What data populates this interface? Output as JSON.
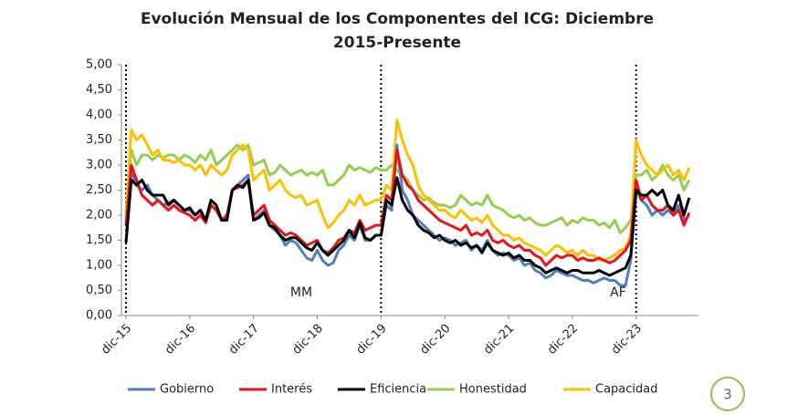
{
  "chart_data": {
    "type": "line",
    "title": "Evolución Mensual de los Componentes del ICG: Diciembre 2015-Presente",
    "categories": [
      "dic-15",
      null,
      null,
      null,
      null,
      null,
      null,
      null,
      null,
      null,
      null,
      null,
      "dic-16",
      null,
      null,
      null,
      null,
      null,
      null,
      null,
      null,
      null,
      null,
      null,
      "dic-17",
      null,
      null,
      null,
      null,
      null,
      null,
      null,
      null,
      null,
      null,
      null,
      "dic-18",
      null,
      null,
      null,
      null,
      null,
      null,
      null,
      null,
      null,
      null,
      null,
      "dic-19",
      null,
      null,
      null,
      null,
      null,
      null,
      null,
      null,
      null,
      null,
      null,
      "dic-20",
      null,
      null,
      null,
      null,
      null,
      null,
      null,
      null,
      null,
      null,
      null,
      "dic-21",
      null,
      null,
      null,
      null,
      null,
      null,
      null,
      null,
      null,
      null,
      null,
      "dic-22",
      null,
      null,
      null,
      null,
      null,
      null,
      null,
      null,
      null,
      null,
      null,
      "dic-23",
      null,
      null,
      null,
      null,
      null,
      null,
      null,
      null,
      null,
      null
    ],
    "series": [
      {
        "name": "Gobierno",
        "color": "#4f7fbf",
        "values": [
          1.45,
          2.9,
          2.6,
          2.5,
          2.6,
          2.4,
          2.3,
          2.2,
          2.25,
          2.3,
          2.2,
          2.1,
          2.1,
          2.0,
          2.1,
          1.9,
          2.2,
          2.1,
          1.9,
          1.95,
          2.5,
          2.6,
          2.7,
          2.8,
          1.9,
          2.0,
          2.1,
          1.8,
          1.7,
          1.6,
          1.4,
          1.5,
          1.45,
          1.3,
          1.15,
          1.1,
          1.3,
          1.1,
          1.0,
          1.05,
          1.3,
          1.4,
          1.6,
          1.5,
          1.8,
          1.5,
          1.5,
          1.6,
          1.6,
          2.2,
          2.1,
          3.4,
          2.5,
          2.3,
          2.0,
          1.9,
          1.8,
          1.7,
          1.6,
          1.5,
          1.55,
          1.5,
          1.4,
          1.45,
          1.5,
          1.3,
          1.4,
          1.3,
          1.5,
          1.3,
          1.2,
          1.25,
          1.2,
          1.1,
          1.15,
          1.0,
          1.05,
          0.9,
          0.85,
          0.75,
          0.8,
          0.9,
          0.85,
          0.8,
          0.8,
          0.75,
          0.7,
          0.7,
          0.65,
          0.7,
          0.75,
          0.7,
          0.7,
          0.6,
          0.6,
          1.1,
          2.5,
          2.3,
          2.2,
          2.0,
          2.1,
          2.0,
          2.1,
          2.0,
          2.2,
          1.9,
          2.0
        ]
      },
      {
        "name": "Interés",
        "color": "#e8141a",
        "values": [
          1.8,
          3.0,
          2.7,
          2.4,
          2.3,
          2.2,
          2.3,
          2.2,
          2.1,
          2.2,
          2.1,
          2.05,
          2.0,
          1.9,
          2.0,
          1.85,
          2.2,
          2.1,
          1.9,
          2.0,
          2.5,
          2.55,
          2.6,
          2.7,
          2.0,
          2.1,
          2.2,
          1.9,
          1.8,
          1.7,
          1.6,
          1.65,
          1.6,
          1.5,
          1.4,
          1.45,
          1.5,
          1.3,
          1.25,
          1.35,
          1.5,
          1.55,
          1.7,
          1.65,
          1.9,
          1.7,
          1.75,
          1.8,
          1.8,
          2.4,
          2.3,
          3.3,
          2.8,
          2.6,
          2.5,
          2.3,
          2.2,
          2.1,
          2.0,
          1.9,
          1.85,
          1.8,
          1.75,
          1.7,
          1.8,
          1.6,
          1.65,
          1.6,
          1.7,
          1.5,
          1.45,
          1.5,
          1.4,
          1.35,
          1.4,
          1.3,
          1.3,
          1.2,
          1.15,
          1.0,
          1.1,
          1.2,
          1.15,
          1.2,
          1.2,
          1.1,
          1.15,
          1.1,
          1.1,
          1.15,
          1.1,
          1.05,
          1.1,
          1.2,
          1.3,
          1.5,
          2.7,
          2.3,
          2.4,
          2.2,
          2.1,
          2.1,
          2.2,
          2.0,
          2.1,
          1.8,
          2.05
        ]
      },
      {
        "name": "Eficiencia",
        "color": "#000000",
        "values": [
          1.45,
          2.7,
          2.6,
          2.7,
          2.5,
          2.4,
          2.4,
          2.4,
          2.2,
          2.3,
          2.2,
          2.1,
          2.15,
          2.0,
          2.1,
          1.9,
          2.3,
          2.2,
          1.9,
          1.9,
          2.5,
          2.6,
          2.55,
          2.7,
          1.9,
          1.95,
          2.05,
          1.8,
          1.75,
          1.6,
          1.5,
          1.55,
          1.55,
          1.45,
          1.35,
          1.3,
          1.45,
          1.3,
          1.2,
          1.3,
          1.4,
          1.5,
          1.7,
          1.55,
          1.85,
          1.55,
          1.5,
          1.6,
          1.6,
          2.3,
          2.2,
          2.75,
          2.3,
          2.1,
          2.0,
          1.8,
          1.7,
          1.65,
          1.55,
          1.6,
          1.5,
          1.45,
          1.5,
          1.4,
          1.45,
          1.35,
          1.4,
          1.25,
          1.45,
          1.3,
          1.25,
          1.2,
          1.25,
          1.15,
          1.2,
          1.1,
          1.1,
          1.0,
          0.95,
          0.85,
          0.9,
          0.95,
          0.9,
          0.85,
          0.9,
          0.9,
          0.85,
          0.85,
          0.85,
          0.9,
          0.85,
          0.8,
          0.85,
          0.9,
          0.95,
          1.2,
          2.5,
          2.4,
          2.4,
          2.5,
          2.4,
          2.5,
          2.2,
          2.1,
          2.4,
          2.0,
          2.35
        ]
      },
      {
        "name": "Honestidad",
        "color": "#92d050",
        "values": [
          1.9,
          3.3,
          3.0,
          3.2,
          3.2,
          3.1,
          3.2,
          3.15,
          3.2,
          3.2,
          3.1,
          3.2,
          3.15,
          3.05,
          3.2,
          3.1,
          3.3,
          3.0,
          3.1,
          3.2,
          3.3,
          3.4,
          3.3,
          3.4,
          3.0,
          3.05,
          3.1,
          2.8,
          2.85,
          3.0,
          2.9,
          2.8,
          2.85,
          2.9,
          2.8,
          2.85,
          2.8,
          2.9,
          2.6,
          2.6,
          2.7,
          2.8,
          3.0,
          2.9,
          2.95,
          2.9,
          2.85,
          2.95,
          2.9,
          2.9,
          3.0,
          2.9,
          2.8,
          2.7,
          2.5,
          2.4,
          2.3,
          2.35,
          2.25,
          2.2,
          2.2,
          2.15,
          2.2,
          2.4,
          2.3,
          2.2,
          2.25,
          2.2,
          2.4,
          2.2,
          2.15,
          2.1,
          2.0,
          1.95,
          2.0,
          1.9,
          1.95,
          1.85,
          1.8,
          1.8,
          1.85,
          1.9,
          1.95,
          1.8,
          1.9,
          1.85,
          1.95,
          1.9,
          1.9,
          1.8,
          1.85,
          1.75,
          1.9,
          1.65,
          1.75,
          1.9,
          2.8,
          2.8,
          2.9,
          2.7,
          2.8,
          3.0,
          2.8,
          2.7,
          2.8,
          2.5,
          2.7
        ]
      },
      {
        "name": "Capacidad",
        "color": "#ffc000",
        "values": [
          2.0,
          3.7,
          3.5,
          3.6,
          3.4,
          3.2,
          3.3,
          3.1,
          3.1,
          3.05,
          3.1,
          3.0,
          3.0,
          2.9,
          3.0,
          2.8,
          3.0,
          2.9,
          2.8,
          2.9,
          3.2,
          3.3,
          3.4,
          3.3,
          2.7,
          2.8,
          2.9,
          2.5,
          2.6,
          2.7,
          2.5,
          2.4,
          2.35,
          2.4,
          2.2,
          2.25,
          2.3,
          2.0,
          1.75,
          1.85,
          2.0,
          2.1,
          2.3,
          2.2,
          2.4,
          2.2,
          2.25,
          2.3,
          2.3,
          2.6,
          2.5,
          3.9,
          3.5,
          3.2,
          3.0,
          2.6,
          2.4,
          2.3,
          2.2,
          2.1,
          2.1,
          2.0,
          1.95,
          2.1,
          2.0,
          1.9,
          1.95,
          1.85,
          2.0,
          1.8,
          1.7,
          1.6,
          1.6,
          1.5,
          1.55,
          1.45,
          1.4,
          1.35,
          1.3,
          1.2,
          1.3,
          1.4,
          1.35,
          1.25,
          1.3,
          1.2,
          1.3,
          1.2,
          1.2,
          1.1,
          1.1,
          1.15,
          1.2,
          1.3,
          1.35,
          1.6,
          3.5,
          3.2,
          3.0,
          2.9,
          2.8,
          2.9,
          3.0,
          2.8,
          2.9,
          2.7,
          2.95
        ]
      }
    ],
    "annotations": [
      "MM",
      "AF"
    ],
    "ylim": [
      0,
      5
    ],
    "yticks": [
      {
        "value": 0,
        "label": "0,00"
      },
      {
        "value": 0.5,
        "label": "0,50"
      },
      {
        "value": 1,
        "label": "1,00"
      },
      {
        "value": 1.5,
        "label": "1,50"
      },
      {
        "value": 2,
        "label": "2,00"
      },
      {
        "value": 2.5,
        "label": "2,50"
      },
      {
        "value": 3,
        "label": "3,00"
      },
      {
        "value": 3.5,
        "label": "3,50"
      },
      {
        "value": 4,
        "label": "4,00"
      },
      {
        "value": 4.5,
        "label": "4,50"
      },
      {
        "value": 5,
        "label": "5,00"
      }
    ],
    "grid": false,
    "legend": "bottom"
  },
  "page_number": "3"
}
